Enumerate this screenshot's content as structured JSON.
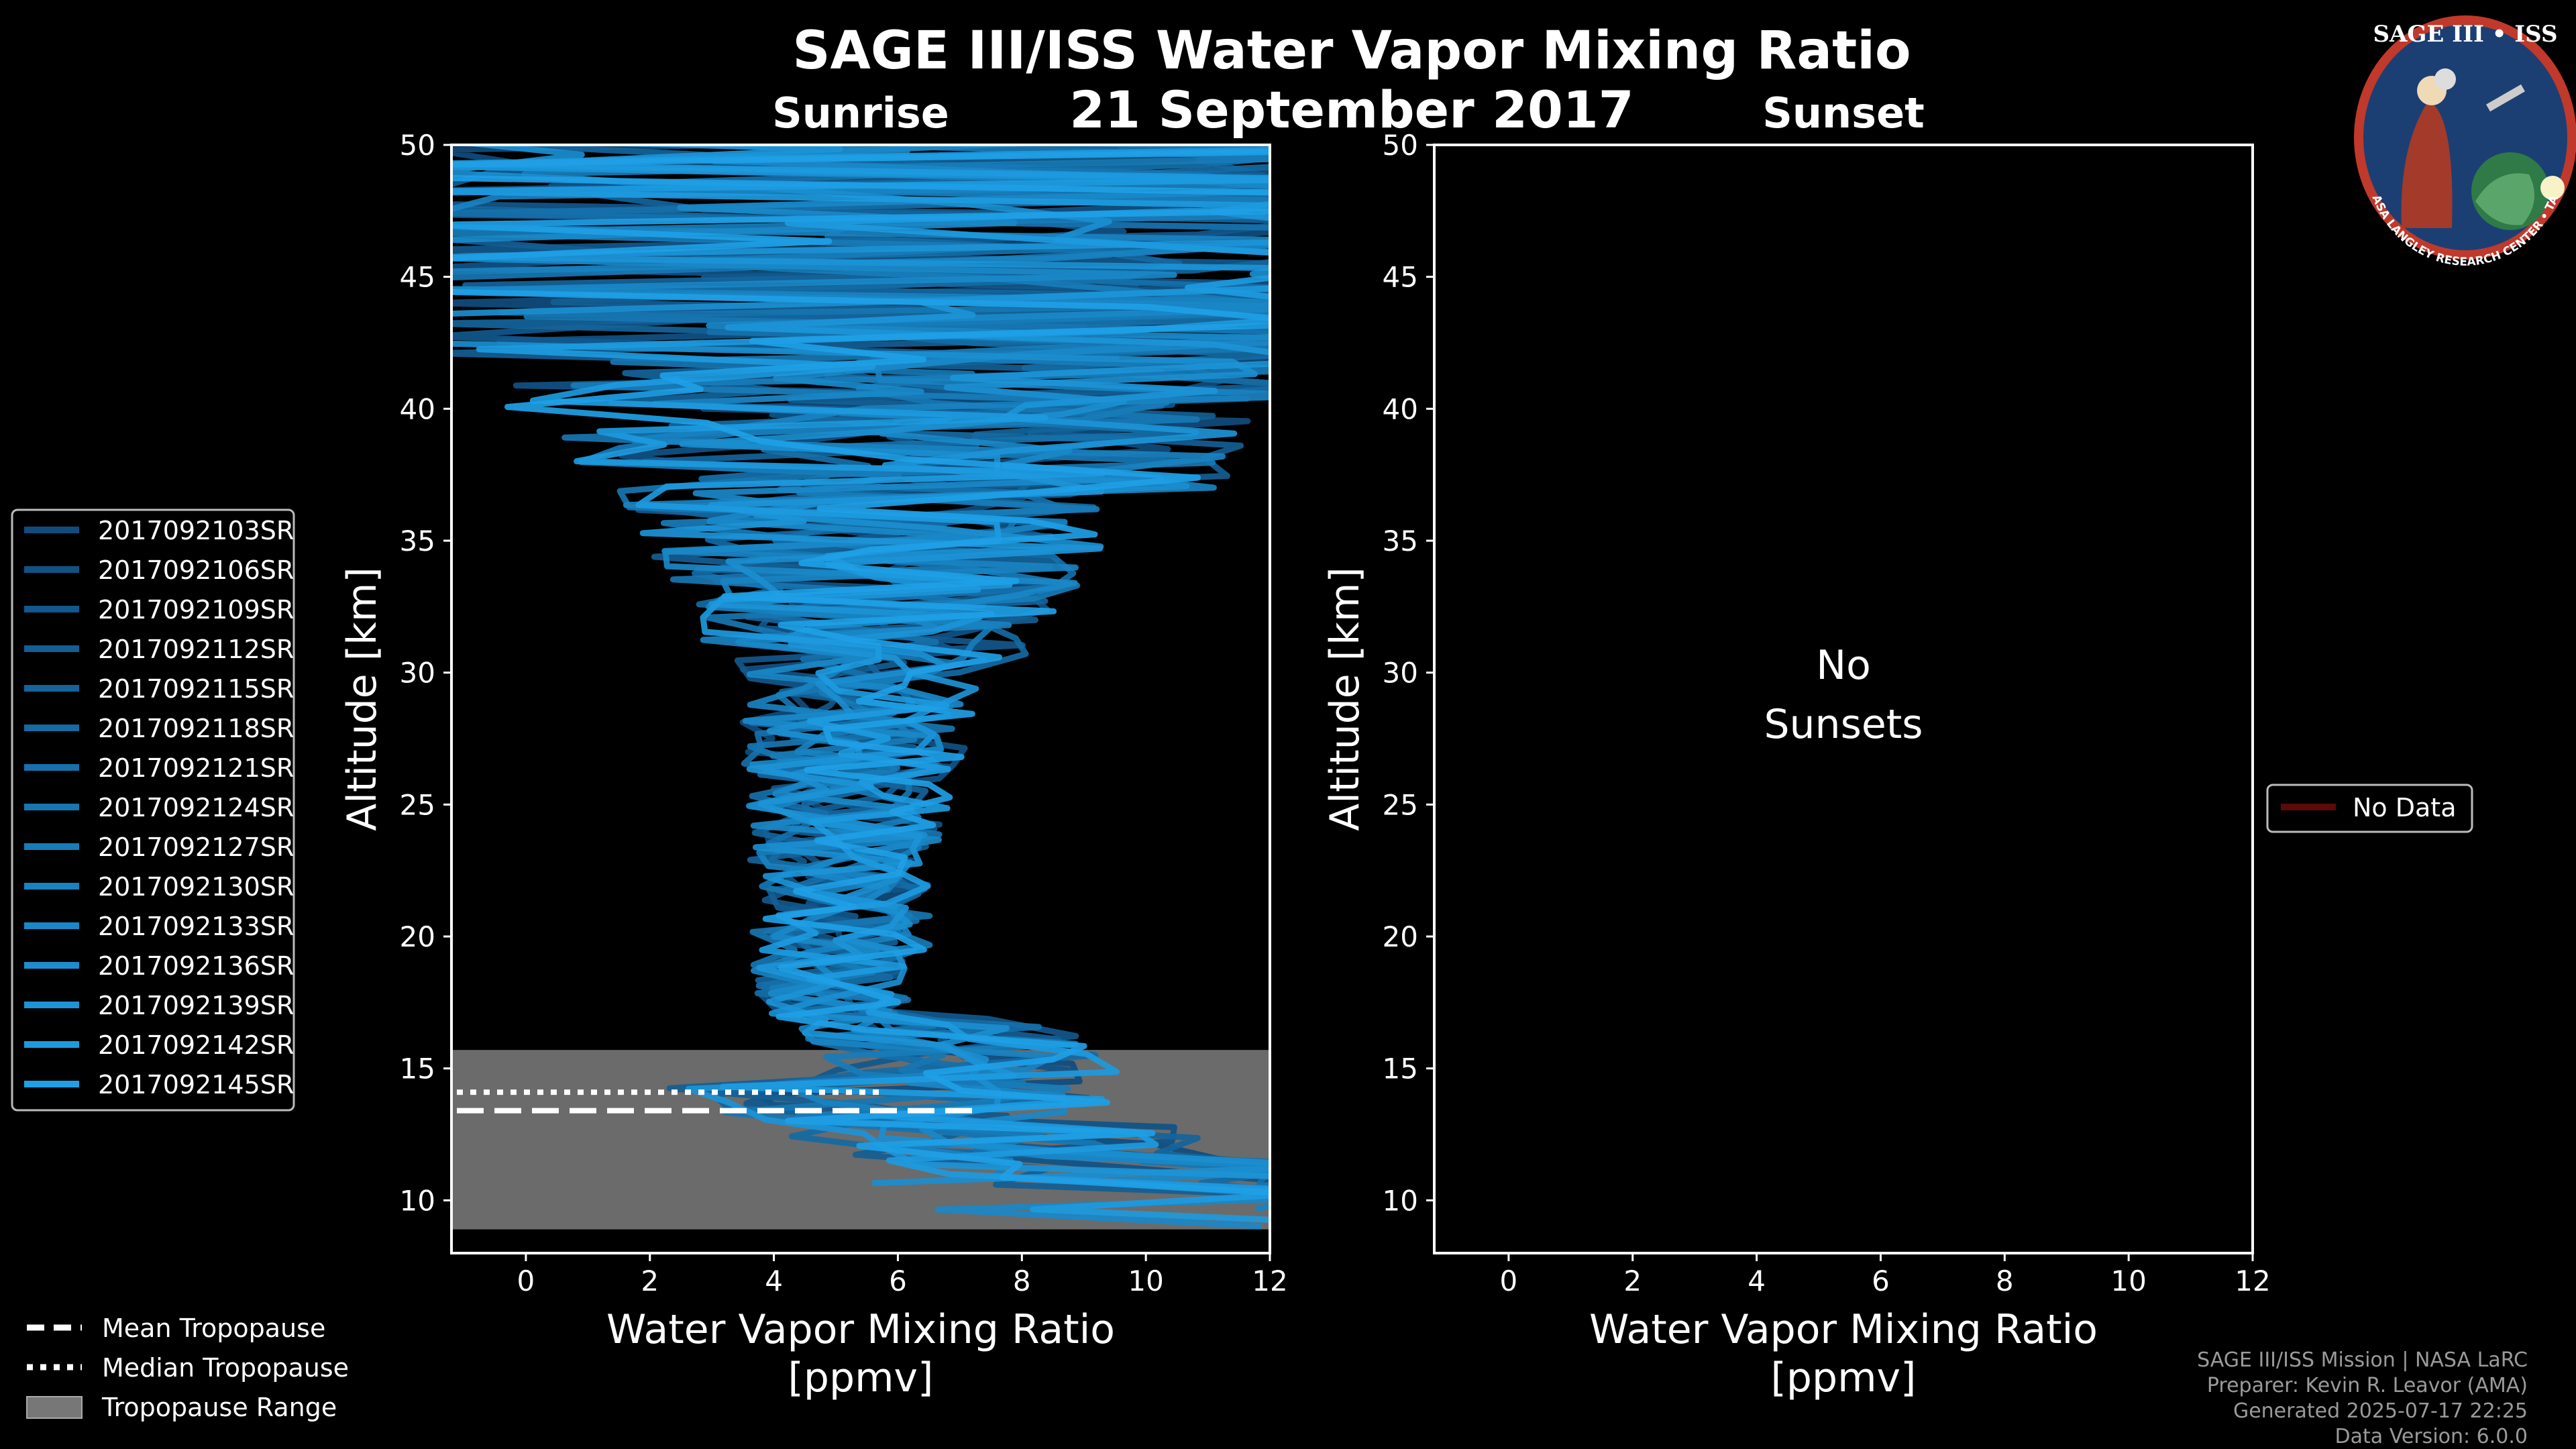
{
  "title": "SAGE III/ISS Water Vapor Mixing Ratio",
  "date": "21 September 2017",
  "colors": {
    "background": "#000000",
    "tropopause_range": "#777777",
    "series_base": "#1ea0e6",
    "no_data": "#5a0a0a"
  },
  "footer": {
    "line1": "SAGE III/ISS Mission | NASA LaRC",
    "line2": "Preparer: Kevin R. Leavor (AMA)",
    "line3": "Generated 2025-07-17 22:25",
    "line4": "Data Version: 6.0.0"
  },
  "logo": {
    "title": "SAGE III • ISS",
    "ring_text": "BALL • NASA LANGLEY RESEARCH CENTER • TAS-I • ESA"
  },
  "bottom_legend": {
    "mean": "Mean Tropopause",
    "median": "Median Tropopause",
    "range": "Tropopause Range"
  },
  "sunrise_legend": [
    "2017092103SR",
    "2017092106SR",
    "2017092109SR",
    "2017092112SR",
    "2017092115SR",
    "2017092118SR",
    "2017092121SR",
    "2017092124SR",
    "2017092127SR",
    "2017092130SR",
    "2017092133SR",
    "2017092136SR",
    "2017092139SR",
    "2017092142SR",
    "2017092145SR"
  ],
  "sunset_legend": [
    "No Data"
  ],
  "no_sunsets_text": [
    "No",
    "Sunsets"
  ],
  "chart_data": [
    {
      "type": "line",
      "subtitle": "Sunrise",
      "xlabel": "Water Vapor Mixing Ratio [ppmv]",
      "ylabel": "Altitude [km]",
      "xlim": [
        -1.2,
        12
      ],
      "ylim": [
        8,
        50
      ],
      "xticks": [
        0,
        2,
        4,
        6,
        8,
        10,
        12
      ],
      "yticks": [
        10,
        15,
        20,
        25,
        30,
        35,
        40,
        45,
        50
      ],
      "grid": false,
      "legend_position": "left",
      "tropopause": {
        "mean_km": 13.4,
        "median_km": 14.1,
        "range_km": [
          8.9,
          15.7
        ]
      },
      "series_note": "15 profiles; water vapor ~4-6 ppmv at 15-30 km, spread widening above 35 km, many values exceeding 12 ppmv above 42 km",
      "series": [
        {
          "name": "2017092103SR",
          "shade": 0.3
        },
        {
          "name": "2017092106SR",
          "shade": 0.35
        },
        {
          "name": "2017092109SR",
          "shade": 0.4
        },
        {
          "name": "2017092112SR",
          "shade": 0.45
        },
        {
          "name": "2017092115SR",
          "shade": 0.5
        },
        {
          "name": "2017092118SR",
          "shade": 0.55
        },
        {
          "name": "2017092121SR",
          "shade": 0.6
        },
        {
          "name": "2017092124SR",
          "shade": 0.65
        },
        {
          "name": "2017092127SR",
          "shade": 0.7
        },
        {
          "name": "2017092130SR",
          "shade": 0.75
        },
        {
          "name": "2017092133SR",
          "shade": 0.8
        },
        {
          "name": "2017092136SR",
          "shade": 0.85
        },
        {
          "name": "2017092139SR",
          "shade": 0.9
        },
        {
          "name": "2017092142SR",
          "shade": 0.95
        },
        {
          "name": "2017092145SR",
          "shade": 1.0
        }
      ]
    },
    {
      "type": "line",
      "subtitle": "Sunset",
      "xlabel": "Water Vapor Mixing Ratio [ppmv]",
      "ylabel": "Altitude [km]",
      "xlim": [
        -1.2,
        12
      ],
      "ylim": [
        8,
        50
      ],
      "xticks": [
        0,
        2,
        4,
        6,
        8,
        10,
        12
      ],
      "yticks": [
        10,
        15,
        20,
        25,
        30,
        35,
        40,
        45,
        50
      ],
      "grid": false,
      "legend_position": "right",
      "series": []
    }
  ]
}
